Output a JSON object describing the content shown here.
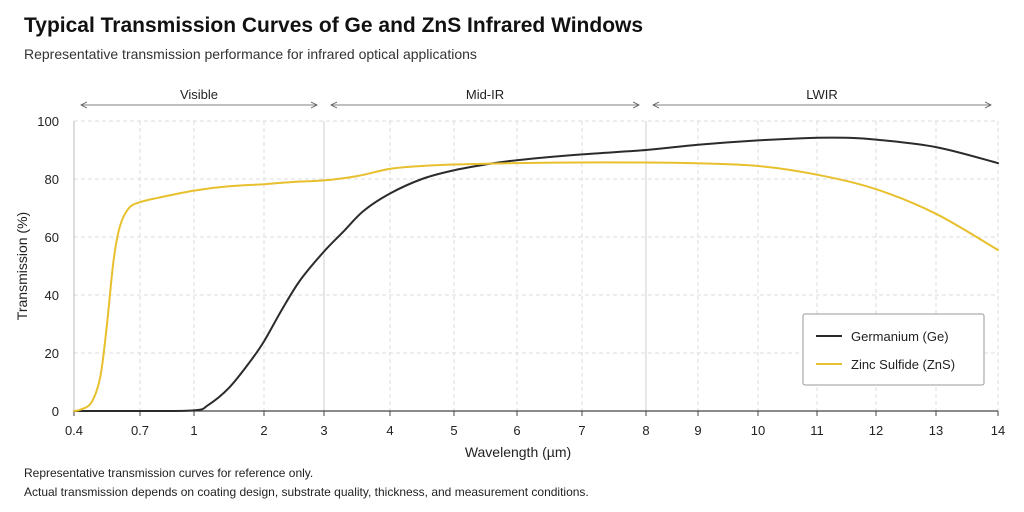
{
  "header": {
    "title": "Typical Transmission Curves of Ge and ZnS Infrared Windows",
    "subtitle": "Representative transmission performance for infrared optical applications"
  },
  "notes": [
    "Representative transmission curves for reference only.",
    "Actual transmission depends on coating design, substrate quality, thickness, and measurement conditions."
  ],
  "chart_data": {
    "type": "line",
    "title": "Typical Transmission Curves of Ge and ZnS Infrared Windows",
    "subtitle": "Representative transmission performance for infrared optical applications",
    "xlabel": "Wavelength (µm)",
    "ylabel": "Transmission (%)",
    "x_scale": "piecewise-linear (compressed 0.4–3 µm, 3–8 µm, 8–14 µm)",
    "x_ticks": [
      0.4,
      0.7,
      1,
      2,
      3,
      4,
      5,
      6,
      7,
      8,
      9,
      10,
      11,
      12,
      13,
      14
    ],
    "x_tick_labels": [
      "0.4",
      "0.7",
      "1",
      "2",
      "3",
      "4",
      "5",
      "6",
      "7",
      "8",
      "9",
      "10",
      "11",
      "12",
      "13",
      "14"
    ],
    "ylim": [
      0,
      100
    ],
    "y_ticks": [
      0,
      20,
      40,
      60,
      80,
      100
    ],
    "grid": true,
    "legend_position": "bottom-right",
    "regions": [
      {
        "label": "Visible",
        "x_start": 0.4,
        "x_end": 3
      },
      {
        "label": "Mid-IR",
        "x_start": 3,
        "x_end": 8
      },
      {
        "label": "LWIR",
        "x_start": 8,
        "x_end": 14
      }
    ],
    "series": [
      {
        "name": "Germanium (Ge)",
        "color": "#2b2b2b",
        "points": [
          [
            0.4,
            0
          ],
          [
            0.7,
            0
          ],
          [
            1,
            0.2
          ],
          [
            1.2,
            2
          ],
          [
            1.5,
            8
          ],
          [
            1.8,
            17
          ],
          [
            2,
            24
          ],
          [
            2.3,
            35
          ],
          [
            2.6,
            45
          ],
          [
            3,
            55
          ],
          [
            3.3,
            62
          ],
          [
            3.6,
            69
          ],
          [
            4,
            75
          ],
          [
            4.5,
            80
          ],
          [
            5,
            83
          ],
          [
            5.5,
            85
          ],
          [
            6,
            86.5
          ],
          [
            7,
            88.5
          ],
          [
            8,
            90
          ],
          [
            9,
            91.8
          ],
          [
            10,
            93.3
          ],
          [
            11,
            94.2
          ],
          [
            11.5,
            94.2
          ],
          [
            12,
            93.6
          ],
          [
            13,
            91
          ],
          [
            14,
            85.5
          ]
        ]
      },
      {
        "name": "Zinc Sulfide (ZnS)",
        "color": "#e8c02e",
        "points": [
          [
            0.4,
            0
          ],
          [
            0.43,
            0.5
          ],
          [
            0.48,
            3
          ],
          [
            0.52,
            12
          ],
          [
            0.55,
            30
          ],
          [
            0.58,
            52
          ],
          [
            0.61,
            64
          ],
          [
            0.65,
            70
          ],
          [
            0.7,
            72
          ],
          [
            0.8,
            73.5
          ],
          [
            1,
            76
          ],
          [
            1.5,
            77.5
          ],
          [
            2,
            78.2
          ],
          [
            2.5,
            79
          ],
          [
            3,
            79.5
          ],
          [
            3.5,
            81
          ],
          [
            4,
            83.5
          ],
          [
            4.5,
            84.5
          ],
          [
            5,
            85
          ],
          [
            6,
            85.5
          ],
          [
            7,
            85.7
          ],
          [
            8,
            85.7
          ],
          [
            9,
            85.4
          ],
          [
            10,
            84.5
          ],
          [
            11,
            81.5
          ],
          [
            12,
            76.5
          ],
          [
            13,
            68
          ],
          [
            14,
            55.5
          ]
        ]
      }
    ]
  }
}
